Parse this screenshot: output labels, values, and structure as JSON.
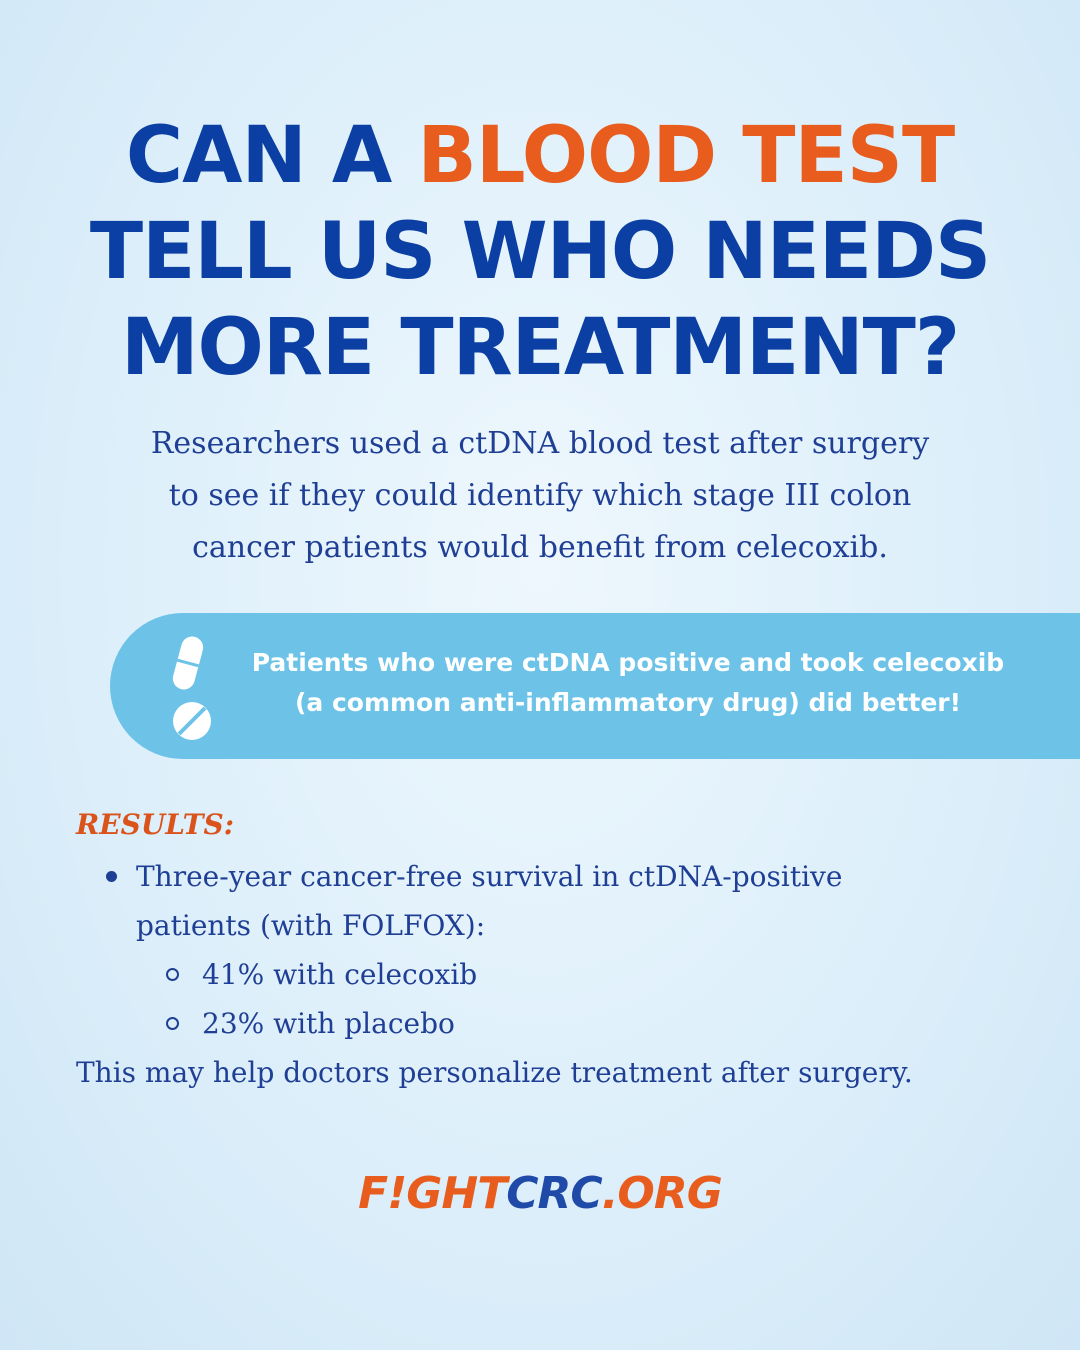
{
  "headline": {
    "line1_before": "CAN A ",
    "line1_accent": "BLOOD TEST",
    "line2": "TELL US WHO NEEDS",
    "line3": "MORE TREATMENT?"
  },
  "intro": {
    "lines": [
      "Researchers used a ctDNA blood test after surgery",
      "to see if they could identify which stage III colon",
      "cancer patients would benefit from celecoxib."
    ]
  },
  "callout": {
    "icon": "pill-icon",
    "line1": "Patients who were ctDNA positive and took celecoxib",
    "line2": "(a common anti-inflammatory drug) did better!"
  },
  "results": {
    "label": "RESULTS:",
    "bullet_line1": "Three-year cancer-free survival in ctDNA-positive",
    "bullet_line2": "patients (with FOLFOX):",
    "sub_items": [
      "41% with celecoxib",
      "23% with placebo"
    ],
    "conclusion": "This may help doctors personalize treatment after surgery."
  },
  "logo": {
    "part1": "F!GHT",
    "part2": "CRC",
    "part3": ".ORG"
  },
  "colors": {
    "navy": "#0b3fa3",
    "orange": "#e85d1e",
    "callout_blue": "#6cc3e7",
    "text_blue": "#1f3f95"
  }
}
